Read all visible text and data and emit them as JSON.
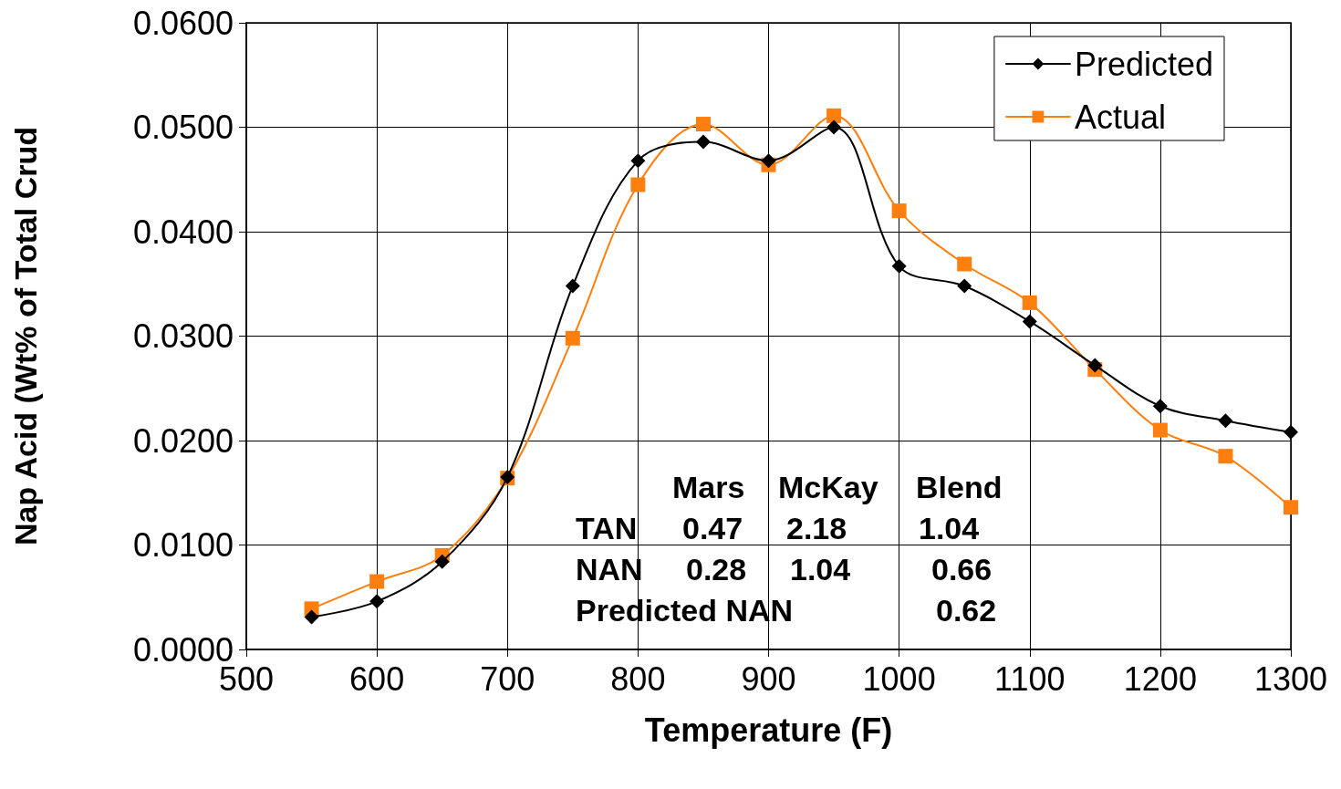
{
  "chart_data": {
    "type": "line",
    "xlabel": "Temperature (F)",
    "ylabel": "Nap Acid (Wt% of Total Crud",
    "x": [
      550,
      600,
      650,
      700,
      750,
      800,
      850,
      900,
      950,
      1000,
      1050,
      1100,
      1150,
      1200,
      1250,
      1300
    ],
    "series": [
      {
        "name": "Predicted",
        "color": "#000000",
        "marker": "diamond",
        "values": [
          0.0031,
          0.0046,
          0.0084,
          0.0165,
          0.0348,
          0.0468,
          0.0486,
          0.0468,
          0.05,
          0.0367,
          0.0348,
          0.0314,
          0.0272,
          0.0233,
          0.0219,
          0.0208
        ]
      },
      {
        "name": "Actual",
        "color": "#ff7f0e",
        "marker": "square",
        "values": [
          0.0039,
          0.0065,
          0.009,
          0.0164,
          0.0298,
          0.0445,
          0.0503,
          0.0464,
          0.0511,
          0.042,
          0.0369,
          0.0332,
          0.0268,
          0.021,
          0.0185,
          0.0136
        ]
      }
    ],
    "xlim": [
      500,
      1300
    ],
    "xticks": [
      500,
      600,
      700,
      800,
      900,
      1000,
      1100,
      1200,
      1300
    ],
    "ylim": [
      0,
      0.06
    ],
    "yticks": [
      {
        "value": 0,
        "label": "0.0000"
      },
      {
        "value": 0.01,
        "label": "0.0100"
      },
      {
        "value": 0.02,
        "label": "0.0200"
      },
      {
        "value": 0.03,
        "label": "0.0300"
      },
      {
        "value": 0.04,
        "label": "0.0400"
      },
      {
        "value": 0.05,
        "label": "0.0500"
      },
      {
        "value": 0.06,
        "label": "0.0600"
      }
    ],
    "grid": true,
    "legend": "top right",
    "line_style": "solid",
    "annotations": [
      "Mars",
      "McKay",
      "Blend",
      "TAN",
      "0.47",
      "2.18",
      "1.04",
      "NAN",
      "0.28",
      "1.04",
      "0.66",
      "Predicted NAN",
      "0.62"
    ]
  }
}
